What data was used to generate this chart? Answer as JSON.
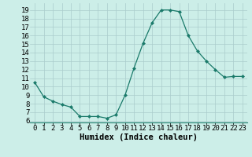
{
  "x": [
    0,
    1,
    2,
    3,
    4,
    5,
    6,
    7,
    8,
    9,
    10,
    11,
    12,
    13,
    14,
    15,
    16,
    17,
    18,
    19,
    20,
    21,
    22,
    23
  ],
  "y": [
    10.5,
    8.8,
    8.3,
    7.9,
    7.6,
    6.5,
    6.5,
    6.5,
    6.3,
    6.7,
    9.0,
    12.2,
    15.1,
    17.5,
    19.0,
    19.0,
    18.8,
    16.0,
    14.2,
    13.0,
    12.0,
    11.1,
    11.2,
    11.2
  ],
  "line_color": "#1a7a6a",
  "marker": "D",
  "marker_size": 2.0,
  "line_width": 0.9,
  "bg_color": "#cceee8",
  "grid_color": "#aacccc",
  "xlabel": "Humidex (Indice chaleur)",
  "xlim": [
    -0.5,
    23.5
  ],
  "ylim": [
    5.8,
    19.8
  ],
  "yticks": [
    6,
    7,
    8,
    9,
    10,
    11,
    12,
    13,
    14,
    15,
    16,
    17,
    18,
    19
  ],
  "xticks": [
    0,
    1,
    2,
    3,
    4,
    5,
    6,
    7,
    8,
    9,
    10,
    11,
    12,
    13,
    14,
    15,
    16,
    17,
    18,
    19,
    20,
    21,
    22,
    23
  ],
  "xlabel_fontsize": 7.5,
  "tick_fontsize": 6.5
}
